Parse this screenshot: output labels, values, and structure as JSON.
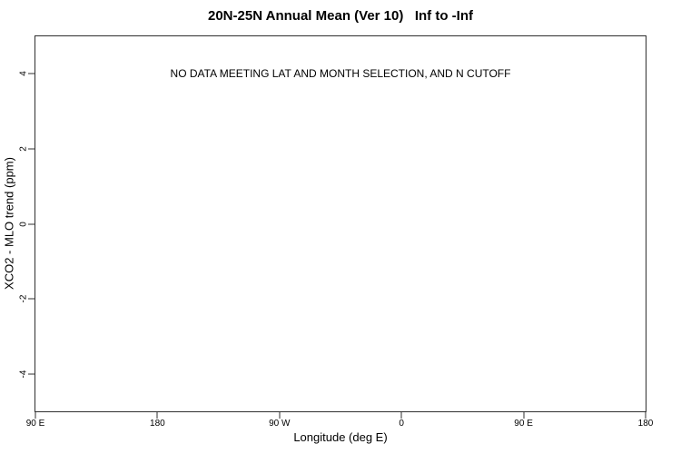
{
  "chart_data": {
    "type": "scatter",
    "title": "20N-25N Annual Mean (Ver 10)   Inf to -Inf",
    "xlabel": "Longitude (deg E)",
    "ylabel": "XCO2 - MLO trend (ppm)",
    "annotation": "NO DATA MEETING LAT AND MONTH SELECTION, AND N CUTOFF",
    "series": [],
    "x_ticks": [
      {
        "label": "90 E",
        "pos_pct": 0
      },
      {
        "label": "180",
        "pos_pct": 20
      },
      {
        "label": "90 W",
        "pos_pct": 40
      },
      {
        "label": "0",
        "pos_pct": 60
      },
      {
        "label": "90 E",
        "pos_pct": 80
      },
      {
        "label": "180",
        "pos_pct": 100
      }
    ],
    "y_ticks": [
      {
        "label": "4",
        "value": 4,
        "pos_pct": 10
      },
      {
        "label": "2",
        "value": 2,
        "pos_pct": 30
      },
      {
        "label": "0",
        "value": 0,
        "pos_pct": 50
      },
      {
        "label": "-2",
        "value": -2,
        "pos_pct": 70
      },
      {
        "label": "-4",
        "value": -4,
        "pos_pct": 90
      }
    ],
    "ylim": [
      -5,
      5
    ],
    "grid": false,
    "legend_position": "none",
    "axis_color": "#2f2f2f",
    "text_color": "#000000",
    "background_color": "#ffffff"
  }
}
